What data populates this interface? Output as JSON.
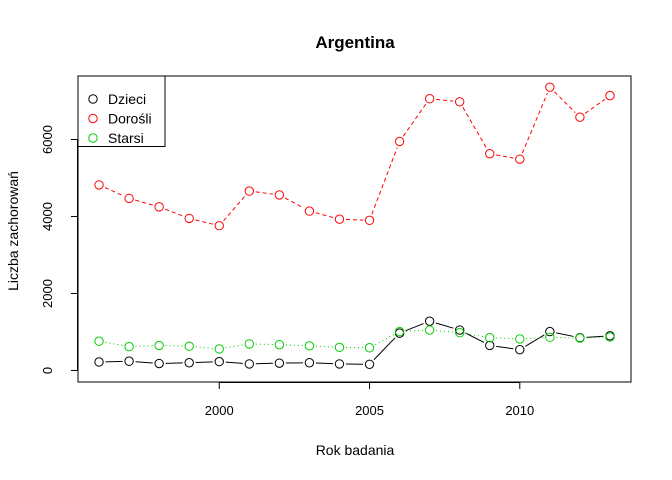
{
  "chart_data": {
    "type": "line",
    "title": "Argentina",
    "xlabel": "Rok badania",
    "ylabel": "Liczba zachorowań",
    "x": [
      1996,
      1997,
      1998,
      1999,
      2000,
      2001,
      2002,
      2003,
      2004,
      2005,
      2006,
      2007,
      2008,
      2009,
      2010,
      2011,
      2012,
      2013
    ],
    "xlim": [
      1995.3,
      2013.7
    ],
    "ylim": [
      -300,
      7650
    ],
    "xticks": [
      2000,
      2005,
      2010
    ],
    "yticks": [
      0,
      2000,
      4000,
      6000
    ],
    "legend_position": "top-left",
    "series": [
      {
        "name": "Dzieci",
        "color": "#000000",
        "line_style": "solid",
        "values": [
          220,
          240,
          180,
          200,
          230,
          170,
          190,
          200,
          170,
          160,
          970,
          1280,
          1050,
          650,
          540,
          1010,
          850,
          900
        ]
      },
      {
        "name": "Dorośli",
        "color": "#ff0000",
        "line_style": "dashed",
        "values": [
          4820,
          4470,
          4250,
          3950,
          3760,
          4660,
          4560,
          4140,
          3930,
          3900,
          5950,
          7060,
          6980,
          5630,
          5490,
          7360,
          6580,
          7140
        ]
      },
      {
        "name": "Starsi",
        "color": "#00cd00",
        "line_style": "dotted",
        "values": [
          760,
          620,
          650,
          630,
          560,
          690,
          670,
          640,
          600,
          590,
          1010,
          1050,
          980,
          850,
          820,
          860,
          840,
          870
        ]
      }
    ]
  }
}
